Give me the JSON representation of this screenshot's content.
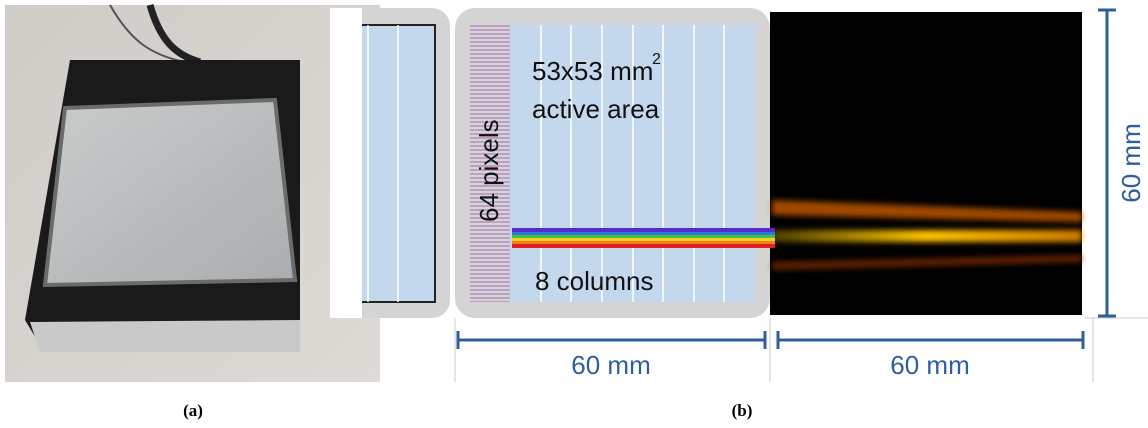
{
  "panel_a": {
    "caption": "(a)"
  },
  "panel_b": {
    "caption": "(b)",
    "area_label": "53x53 mm",
    "area_exponent": "2",
    "area_sublabel": "active area",
    "pixels_label": "64 pixels",
    "columns_label": "8 columns",
    "dimensions": [
      "60 mm",
      "60 mm",
      "60 mm"
    ]
  }
}
